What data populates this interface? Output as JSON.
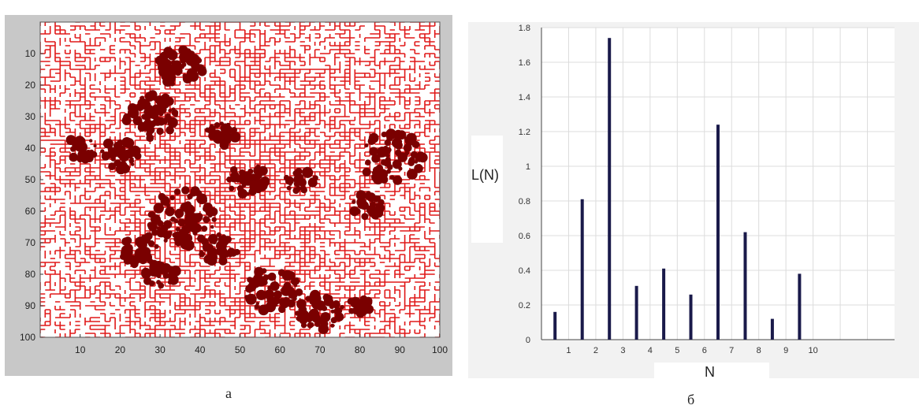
{
  "captions": {
    "a": "a",
    "b": "б"
  },
  "colors": {
    "grid_paths": "#e01818",
    "clusters": "#7a0000",
    "bars": "#1a1a4a",
    "panel_a_bg": "#c8c8c8",
    "plot_bg": "#ffffff"
  },
  "chart_data": [
    {
      "type": "heatmap",
      "title": "",
      "xlabel": "",
      "ylabel": "",
      "xlim": [
        0,
        100
      ],
      "ylim": [
        100,
        0
      ],
      "x_ticks": [
        10,
        20,
        30,
        40,
        50,
        60,
        70,
        80,
        90,
        100
      ],
      "y_ticks": [
        10,
        20,
        30,
        40,
        50,
        60,
        70,
        80,
        90,
        100
      ],
      "grid": false,
      "description_layers": [
        "red percolation lattice paths",
        "dark red clusters"
      ]
    },
    {
      "type": "bar",
      "title": "",
      "xlabel": "N",
      "ylabel": "L(N)",
      "x": [
        0.5,
        1.5,
        2.5,
        3.5,
        4.5,
        5.5,
        6.5,
        7.5,
        8.5,
        9.5
      ],
      "values": [
        0.16,
        0.81,
        1.74,
        0.31,
        0.41,
        0.26,
        1.24,
        0.62,
        0.12,
        0.38
      ],
      "xlim": [
        0,
        13
      ],
      "ylim": [
        0,
        1.8
      ],
      "x_ticks": [
        1,
        2,
        3,
        4,
        5,
        6,
        7,
        8,
        9,
        10
      ],
      "y_ticks": [
        0,
        0.2,
        0.4,
        0.6,
        0.8,
        1,
        1.2,
        1.4,
        1.6,
        1.8
      ],
      "grid": true
    }
  ]
}
